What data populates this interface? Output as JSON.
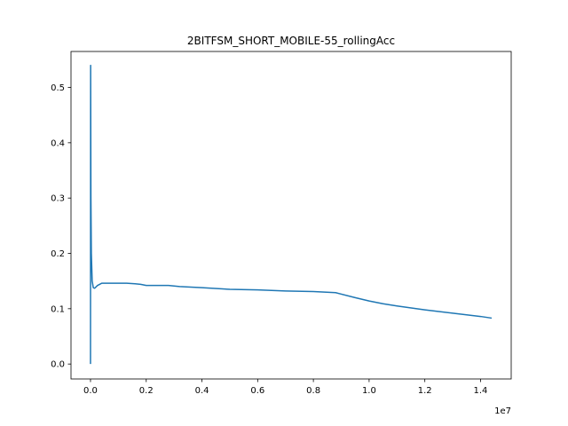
{
  "chart_data": {
    "type": "line",
    "title": "2BITFSM_SHORT_MOBILE-55_rollingAcc",
    "xlabel": "",
    "ylabel": "",
    "x_offset_label": "1e7",
    "x_scale": 10000000,
    "xlim": [
      -700000,
      15100000
    ],
    "ylim": [
      -0.027,
      0.565
    ],
    "xticks": [
      0,
      2000000,
      4000000,
      6000000,
      8000000,
      10000000,
      12000000,
      14000000
    ],
    "xtick_labels": [
      "0.0",
      "0.2",
      "0.4",
      "0.6",
      "0.8",
      "1.0",
      "1.2",
      "1.4"
    ],
    "yticks": [
      0.0,
      0.1,
      0.2,
      0.3,
      0.4,
      0.5
    ],
    "ytick_labels": [
      "0.0",
      "0.1",
      "0.2",
      "0.3",
      "0.4",
      "0.5"
    ],
    "grid": false,
    "legend": "none",
    "colors": {
      "series": "#1f77b4",
      "axes": "#000000",
      "background": "#ffffff"
    },
    "series": [
      {
        "values_xy": [
          [
            0,
            0.0
          ],
          [
            5000,
            0.54
          ],
          [
            15000,
            0.3
          ],
          [
            30000,
            0.2
          ],
          [
            60000,
            0.15
          ],
          [
            100000,
            0.138
          ],
          [
            150000,
            0.137
          ],
          [
            250000,
            0.142
          ],
          [
            400000,
            0.146
          ],
          [
            700000,
            0.146
          ],
          [
            1000000,
            0.146
          ],
          [
            1300000,
            0.146
          ],
          [
            1600000,
            0.145
          ],
          [
            1800000,
            0.144
          ],
          [
            2000000,
            0.142
          ],
          [
            2400000,
            0.142
          ],
          [
            2800000,
            0.142
          ],
          [
            3200000,
            0.14
          ],
          [
            4000000,
            0.138
          ],
          [
            5000000,
            0.135
          ],
          [
            6000000,
            0.134
          ],
          [
            7000000,
            0.132
          ],
          [
            8000000,
            0.131
          ],
          [
            8800000,
            0.129
          ],
          [
            9500000,
            0.12
          ],
          [
            10000000,
            0.114
          ],
          [
            10500000,
            0.109
          ],
          [
            11000000,
            0.105
          ],
          [
            12000000,
            0.098
          ],
          [
            13000000,
            0.092
          ],
          [
            14000000,
            0.086
          ],
          [
            14400000,
            0.083
          ]
        ]
      }
    ]
  }
}
